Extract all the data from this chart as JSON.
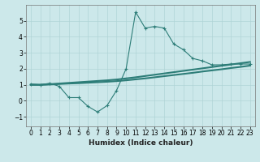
{
  "xlabel": "Humidex (Indice chaleur)",
  "background_color": "#cce8ea",
  "grid_color": "#b0d4d6",
  "line_color": "#2d7d78",
  "xlim": [
    -0.5,
    23.5
  ],
  "ylim": [
    -1.6,
    6.0
  ],
  "yticks": [
    -1,
    0,
    1,
    2,
    3,
    4,
    5
  ],
  "xticks": [
    0,
    1,
    2,
    3,
    4,
    5,
    6,
    7,
    8,
    9,
    10,
    11,
    12,
    13,
    14,
    15,
    16,
    17,
    18,
    19,
    20,
    21,
    22,
    23
  ],
  "curve1_x": [
    0,
    1,
    2,
    3,
    4,
    5,
    6,
    7,
    8,
    9,
    10,
    11,
    12,
    13,
    14,
    15,
    16,
    17,
    18,
    19,
    20,
    21,
    22,
    23
  ],
  "curve1_y": [
    1.05,
    1.0,
    1.1,
    0.9,
    0.2,
    0.2,
    -0.35,
    -0.7,
    -0.3,
    0.65,
    2.0,
    5.55,
    4.55,
    4.65,
    4.55,
    3.55,
    3.2,
    2.65,
    2.5,
    2.25,
    2.25,
    2.3,
    2.3,
    2.3
  ],
  "curve2_x": [
    0,
    1,
    2,
    3,
    4,
    5,
    6,
    7,
    8,
    9,
    10,
    11,
    12,
    13,
    14,
    15,
    16,
    17,
    18,
    19,
    20,
    21,
    22,
    23
  ],
  "curve2_y": [
    1.0,
    1.0,
    1.02,
    1.05,
    1.08,
    1.1,
    1.13,
    1.16,
    1.19,
    1.23,
    1.28,
    1.34,
    1.4,
    1.47,
    1.54,
    1.61,
    1.68,
    1.75,
    1.83,
    1.9,
    1.97,
    2.05,
    2.12,
    2.2
  ],
  "curve3_x": [
    0,
    1,
    2,
    3,
    4,
    5,
    6,
    7,
    8,
    9,
    10,
    11,
    12,
    13,
    14,
    15,
    16,
    17,
    18,
    19,
    20,
    21,
    22,
    23
  ],
  "curve3_y": [
    1.0,
    1.0,
    1.04,
    1.08,
    1.12,
    1.16,
    1.2,
    1.24,
    1.28,
    1.33,
    1.4,
    1.47,
    1.55,
    1.63,
    1.71,
    1.79,
    1.87,
    1.95,
    2.03,
    2.11,
    2.19,
    2.27,
    2.35,
    2.43
  ]
}
